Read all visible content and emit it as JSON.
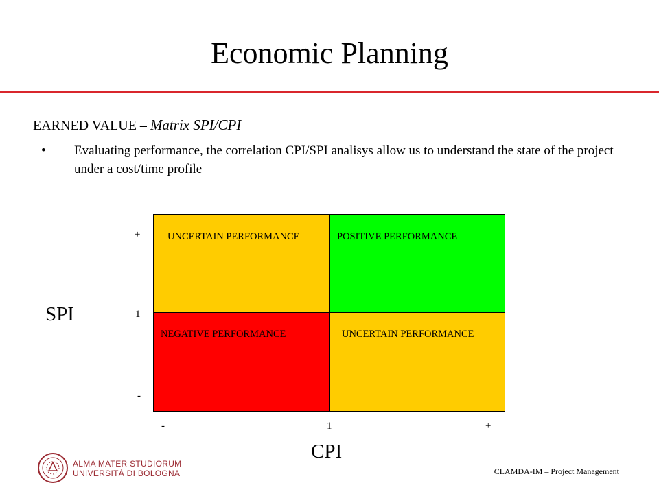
{
  "slide": {
    "title": "Economic Planning",
    "subtitle_prefix": "EARNED VALUE – ",
    "subtitle_italic": "Matrix SPI/CPI",
    "bullet_symbol": "•",
    "bullet_text": "Evaluating performance, the correlation CPI/SPI analisys allow us to understand the state of the project under a cost/time profile",
    "accent_color": "#d9262c"
  },
  "matrix": {
    "quadrants": {
      "top_left": {
        "label": "UNCERTAIN PERFORMANCE",
        "color": "#ffcc00"
      },
      "top_right": {
        "label": "POSITIVE PERFORMANCE",
        "color": "#00ff00"
      },
      "bottom_left": {
        "label": "NEGATIVE PERFORMANCE",
        "color": "#ff0000"
      },
      "bottom_right": {
        "label": "UNCERTAIN PERFORMANCE",
        "color": "#ffcc00"
      }
    },
    "y_axis": {
      "title": "SPI",
      "tick_top": "+",
      "tick_mid": "1",
      "tick_bottom": "-"
    },
    "x_axis": {
      "title": "CPI",
      "tick_left": "-",
      "tick_mid": "1",
      "tick_right": "+"
    }
  },
  "footer": {
    "logo_line1": "ALMA MATER STUDIORUM",
    "logo_line2": "UNIVERSITÀ DI BOLOGNA",
    "logo_color": "#9b2a32",
    "course": "CLAMDA-IM – Project Management"
  }
}
